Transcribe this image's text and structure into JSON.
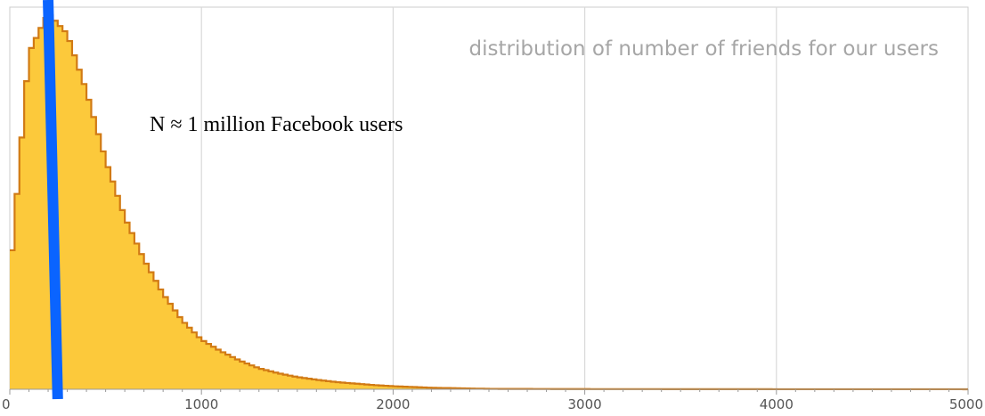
{
  "chart_data": {
    "type": "area",
    "title": "distribution of number of friends for our users",
    "annotation": "N ≈ 1 million Facebook users",
    "xlabel": "",
    "ylabel": "",
    "xlim": [
      0,
      5000
    ],
    "ylim": [
      0,
      1.0
    ],
    "x_ticks": [
      0,
      1000,
      2000,
      3000,
      4000,
      5000
    ],
    "x_tick_labels": [
      "0",
      "1000",
      "2000",
      "3000",
      "4000",
      "5000"
    ],
    "grid": "vertical",
    "bin_width": 25,
    "series": [
      {
        "fill_color": "#fcc93b",
        "line_color": "#d17a14",
        "x": [
          0,
          100,
          200,
          300,
          400,
          500,
          600,
          700,
          800,
          900,
          1000,
          1100,
          1200,
          1300,
          1400,
          1500,
          1600,
          1700,
          1800,
          1900,
          2000,
          2100,
          2200,
          2300,
          2400,
          2500,
          3000,
          4000,
          4950,
          5000
        ],
        "y": [
          0.29,
          0.88,
          0.985,
          0.93,
          0.78,
          0.6,
          0.45,
          0.34,
          0.25,
          0.18,
          0.13,
          0.1,
          0.075,
          0.055,
          0.042,
          0.032,
          0.025,
          0.019,
          0.015,
          0.011,
          0.008,
          0.006,
          0.004,
          0.003,
          0.002,
          0.001,
          0.0005,
          0.0002,
          0.0002,
          0.0
        ]
      }
    ],
    "marker": {
      "color": "#0a64ff",
      "x_top": 200,
      "x_bottom": 250
    }
  }
}
